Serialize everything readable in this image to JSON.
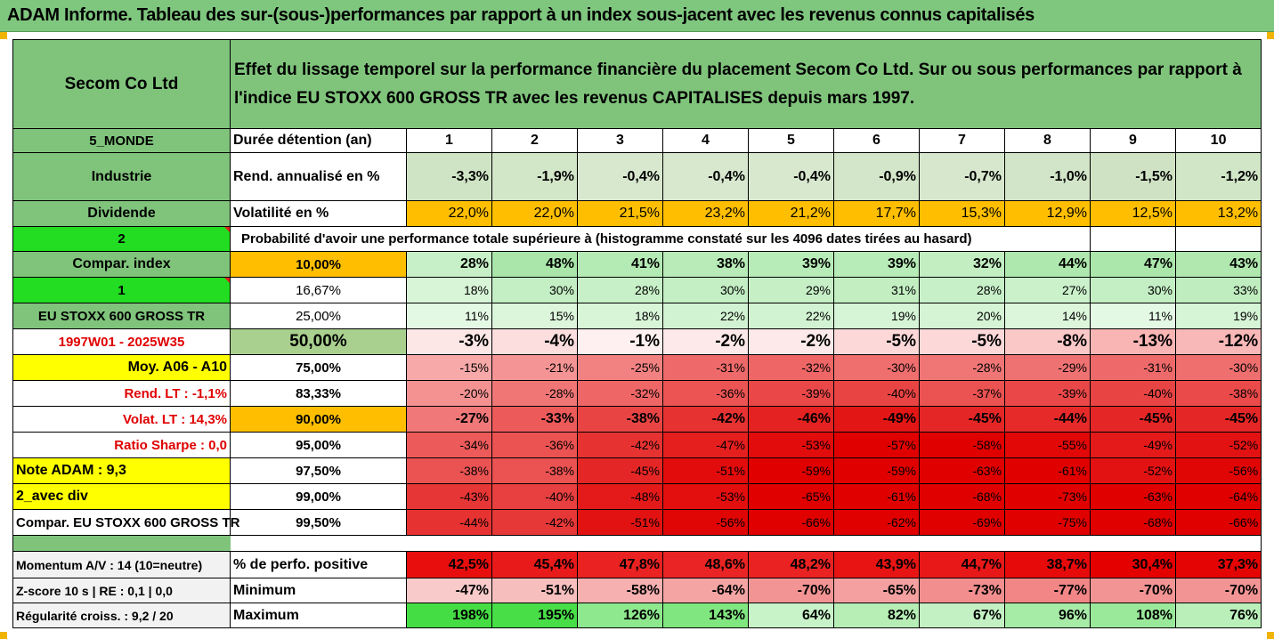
{
  "title": "ADAM Informe. Tableau des sur-(sous-)performances par rapport à un index sous-jacent avec les revenus connus capitalisés",
  "header": {
    "company": "Secom Co Ltd",
    "description_line1": "Effet du lissage temporel sur la performance financière du placement Secom Co Ltd. Sur ou sous performances par rapport à",
    "description_line2": "l'indice EU STOXX 600 GROSS TR avec les revenus CAPITALISES depuis mars 1997."
  },
  "left_labels": {
    "region": "5_MONDE",
    "sector": "Industrie",
    "dividend": "Dividende",
    "value_2": "2",
    "compar_index": "Compar. index",
    "value_1": "1",
    "index_name": "EU STOXX 600 GROSS TR",
    "period": "1997W01 - 2025W35",
    "moy": "Moy. A06 - A10",
    "rend_lt": "Rend. LT :   -1,1%",
    "volat_lt": "Volat. LT :   14,3%",
    "sharpe": "Ratio Sharpe :   0,0",
    "note": "Note ADAM : 9,3",
    "avec_div": "2_avec div",
    "compar_full": "Compar. EU STOXX 600 GROSS TR",
    "momentum": "Momentum A/V : 14 (10=neutre)",
    "zscore": "Z-score 10 s  | RE : 0,1 | 0,0",
    "regularite": "Régularité croiss. : 9,2 / 20"
  },
  "row_labels": {
    "duree": "Durée détention (an)",
    "rend": "Rend. annualisé en %",
    "volat": "Volatilité en %",
    "proba": "Probabilité d'avoir une performance totale supérieure à (histogramme constaté sur les 4096 dates tirées au hasard)",
    "perf_pos": "% de perfo. positive",
    "minimum": "Minimum",
    "maximum": "Maximum"
  },
  "years": [
    "1",
    "2",
    "3",
    "4",
    "5",
    "6",
    "7",
    "8",
    "9",
    "10"
  ],
  "rend": [
    "-3,3%",
    "-1,9%",
    "-0,4%",
    "-0,4%",
    "-0,4%",
    "-0,9%",
    "-0,7%",
    "-1,0%",
    "-1,5%",
    "-1,2%"
  ],
  "volat": [
    "22,0%",
    "22,0%",
    "21,5%",
    "23,2%",
    "21,2%",
    "17,7%",
    "15,3%",
    "12,9%",
    "12,5%",
    "13,2%"
  ],
  "percentiles": [
    {
      "p": "10,00%",
      "vals": [
        "28%",
        "48%",
        "41%",
        "38%",
        "39%",
        "39%",
        "32%",
        "44%",
        "47%",
        "43%"
      ]
    },
    {
      "p": "16,67%",
      "vals": [
        "18%",
        "30%",
        "28%",
        "30%",
        "29%",
        "31%",
        "28%",
        "27%",
        "30%",
        "33%"
      ]
    },
    {
      "p": "25,00%",
      "vals": [
        "11%",
        "15%",
        "18%",
        "22%",
        "22%",
        "19%",
        "20%",
        "14%",
        "11%",
        "19%"
      ]
    },
    {
      "p": "50,00%",
      "vals": [
        "-3%",
        "-4%",
        "-1%",
        "-2%",
        "-2%",
        "-5%",
        "-5%",
        "-8%",
        "-13%",
        "-12%"
      ]
    },
    {
      "p": "75,00%",
      "vals": [
        "-15%",
        "-21%",
        "-25%",
        "-31%",
        "-32%",
        "-30%",
        "-28%",
        "-29%",
        "-31%",
        "-30%"
      ]
    },
    {
      "p": "83,33%",
      "vals": [
        "-20%",
        "-28%",
        "-32%",
        "-36%",
        "-39%",
        "-40%",
        "-37%",
        "-39%",
        "-40%",
        "-38%"
      ]
    },
    {
      "p": "90,00%",
      "vals": [
        "-27%",
        "-33%",
        "-38%",
        "-42%",
        "-46%",
        "-49%",
        "-45%",
        "-44%",
        "-45%",
        "-45%"
      ]
    },
    {
      "p": "95,00%",
      "vals": [
        "-34%",
        "-36%",
        "-42%",
        "-47%",
        "-53%",
        "-57%",
        "-58%",
        "-55%",
        "-49%",
        "-52%"
      ]
    },
    {
      "p": "97,50%",
      "vals": [
        "-38%",
        "-38%",
        "-45%",
        "-51%",
        "-59%",
        "-59%",
        "-63%",
        "-61%",
        "-52%",
        "-56%"
      ]
    },
    {
      "p": "99,00%",
      "vals": [
        "-43%",
        "-40%",
        "-48%",
        "-53%",
        "-65%",
        "-61%",
        "-68%",
        "-73%",
        "-63%",
        "-64%"
      ]
    },
    {
      "p": "99,50%",
      "vals": [
        "-44%",
        "-42%",
        "-51%",
        "-56%",
        "-66%",
        "-62%",
        "-69%",
        "-75%",
        "-68%",
        "-66%"
      ]
    }
  ],
  "perf_pos": [
    "42,5%",
    "45,4%",
    "47,8%",
    "48,6%",
    "48,2%",
    "43,9%",
    "44,7%",
    "38,7%",
    "30,4%",
    "37,3%"
  ],
  "minimum": [
    "-47%",
    "-51%",
    "-58%",
    "-64%",
    "-70%",
    "-65%",
    "-73%",
    "-77%",
    "-70%",
    "-70%"
  ],
  "maximum": [
    "198%",
    "195%",
    "126%",
    "143%",
    "64%",
    "82%",
    "67%",
    "96%",
    "108%",
    "76%"
  ],
  "colors": {
    "header_green": "#80c47c",
    "bright_green": "#22dd22",
    "yellow": "#ffff00",
    "orange": "#ffbf00",
    "red_text": "#e00000",
    "rend_cells": [
      "#cfe4c4",
      "#d2e6c8",
      "#d8e8cf",
      "#d8e8cf",
      "#d8e8cf",
      "#d4e6ca",
      "#d6e7cd",
      "#d2e5c8",
      "#cfe3c4",
      "#d1e5c7"
    ],
    "perc_cells": [
      [
        "#c8f0c8",
        "#aae6aa",
        "#b4eab4",
        "#b8ebb8",
        "#b7ebb7",
        "#b7ebb7",
        "#c2eec2",
        "#aee8ae",
        "#abe7ab",
        "#b0e8b0"
      ],
      [
        "#d8f5d8",
        "#c4efc4",
        "#c8f0c8",
        "#c4efc4",
        "#c6efc6",
        "#c2eec2",
        "#c8f0c8",
        "#caf1ca",
        "#c4efc4",
        "#c0edc0"
      ],
      [
        "#e4f9e4",
        "#dcf6dc",
        "#d8f5d8",
        "#d2f3d2",
        "#d2f3d2",
        "#d6f4d6",
        "#d4f4d4",
        "#dcf6dc",
        "#e4f9e4",
        "#d6f4d6"
      ],
      [
        "#fde6e6",
        "#fcdede",
        "#fef0f0",
        "#fde9e9",
        "#fde9e9",
        "#fcd8d8",
        "#fcd8d8",
        "#fbc8c8",
        "#f9b4b4",
        "#f9b8b8"
      ],
      [
        "#f7a8a8",
        "#f49494",
        "#f28282",
        "#ee6a6a",
        "#ee6666",
        "#ef6e6e",
        "#f07676",
        "#ef7272",
        "#ee6a6a",
        "#ef6e6e"
      ],
      [
        "#f49292",
        "#f07676",
        "#ee6666",
        "#ec5454",
        "#ea4848",
        "#e94444",
        "#eb5252",
        "#ea4848",
        "#e94444",
        "#ea4a4a"
      ],
      [
        "#f07878",
        "#ec5a5a",
        "#e94444",
        "#e73232",
        "#e52222",
        "#e31616",
        "#e52626",
        "#e62a2a",
        "#e52626",
        "#e52626"
      ],
      [
        "#ec5a5a",
        "#eb5252",
        "#e73232",
        "#e51e1e",
        "#e20c0c",
        "#e10000",
        "#e10000",
        "#e20808",
        "#e41a1a",
        "#e31212"
      ],
      [
        "#eb5252",
        "#eb5252",
        "#e52626",
        "#e20c0c",
        "#e00000",
        "#e00000",
        "#e00000",
        "#e00000",
        "#e31212",
        "#e10606"
      ],
      [
        "#e73636",
        "#e84040",
        "#e41a1a",
        "#e30e0e",
        "#e00000",
        "#e00000",
        "#e00000",
        "#e00000",
        "#e00000",
        "#e00000"
      ],
      [
        "#e73232",
        "#e73838",
        "#e31212",
        "#e10606",
        "#e00000",
        "#e00000",
        "#e00000",
        "#e00000",
        "#e00000",
        "#e00000"
      ]
    ],
    "perf_pos_cells": [
      "#e80e0e",
      "#e91a1a",
      "#ea2222",
      "#ea2424",
      "#ea2222",
      "#e81414",
      "#e81818",
      "#e60a0a",
      "#e50000",
      "#e50404"
    ],
    "minimum_cells": [
      "#f8caca",
      "#f7bebe",
      "#f6b0b0",
      "#f5a4a4",
      "#f39494",
      "#f4a0a0",
      "#f28e8e",
      "#f28686",
      "#f39494",
      "#f39494"
    ],
    "maximum_cells": [
      "#44dd44",
      "#48de48",
      "#8ee88e",
      "#80e680",
      "#c8f2c8",
      "#b6eeb6",
      "#c4f1c4",
      "#a6eba6",
      "#9ae99a",
      "#baefba"
    ]
  }
}
